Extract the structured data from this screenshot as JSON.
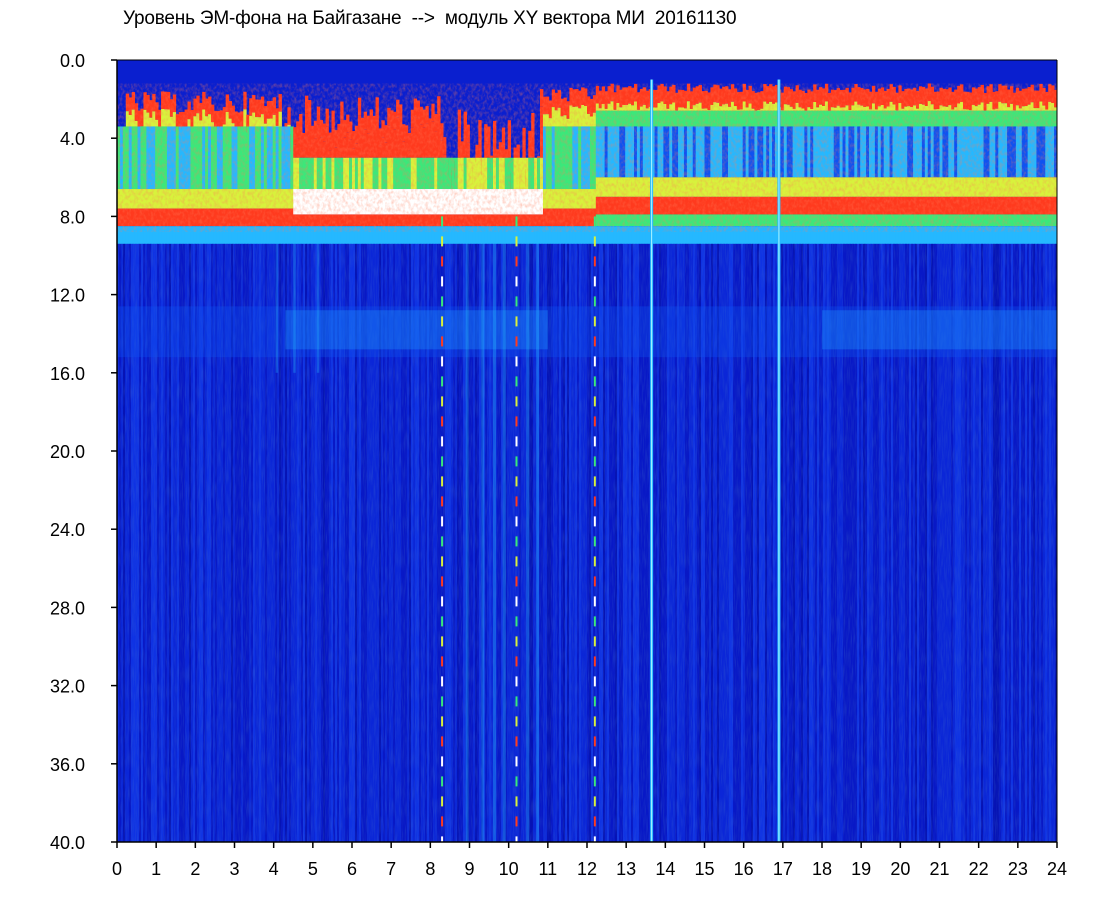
{
  "chart_data": {
    "type": "heatmap",
    "title": "Уровень ЭМ-фона на Байгазане  -->  модуль XY вектора МИ  20161130",
    "xlabel": "",
    "ylabel": "",
    "x_ticks": [
      "0",
      "1",
      "2",
      "3",
      "4",
      "5",
      "6",
      "7",
      "8",
      "9",
      "10",
      "11",
      "12",
      "13",
      "14",
      "15",
      "16",
      "17",
      "18",
      "19",
      "20",
      "21",
      "22",
      "23",
      "24"
    ],
    "y_ticks": [
      "0.0",
      "4.0",
      "8.0",
      "12.0",
      "16.0",
      "20.0",
      "24.0",
      "28.0",
      "32.0",
      "36.0",
      "40.0"
    ],
    "xlim": [
      0,
      24
    ],
    "ylim": [
      0,
      40
    ],
    "y_inverted": true,
    "grid": false,
    "colormap": [
      "#0a1fcf",
      "#0f52f0",
      "#25b8ff",
      "#3be87a",
      "#d8f23c",
      "#ff3a1e",
      "#ffffff"
    ],
    "background_color": "#0a1fcf",
    "vertical_lines": [
      {
        "x": 8.3,
        "style": "dashed"
      },
      {
        "x": 10.2,
        "style": "dashed"
      },
      {
        "x": 12.2,
        "style": "dashed"
      },
      {
        "x": 13.65,
        "style": "solid"
      },
      {
        "x": 16.9,
        "style": "solid"
      }
    ]
  }
}
